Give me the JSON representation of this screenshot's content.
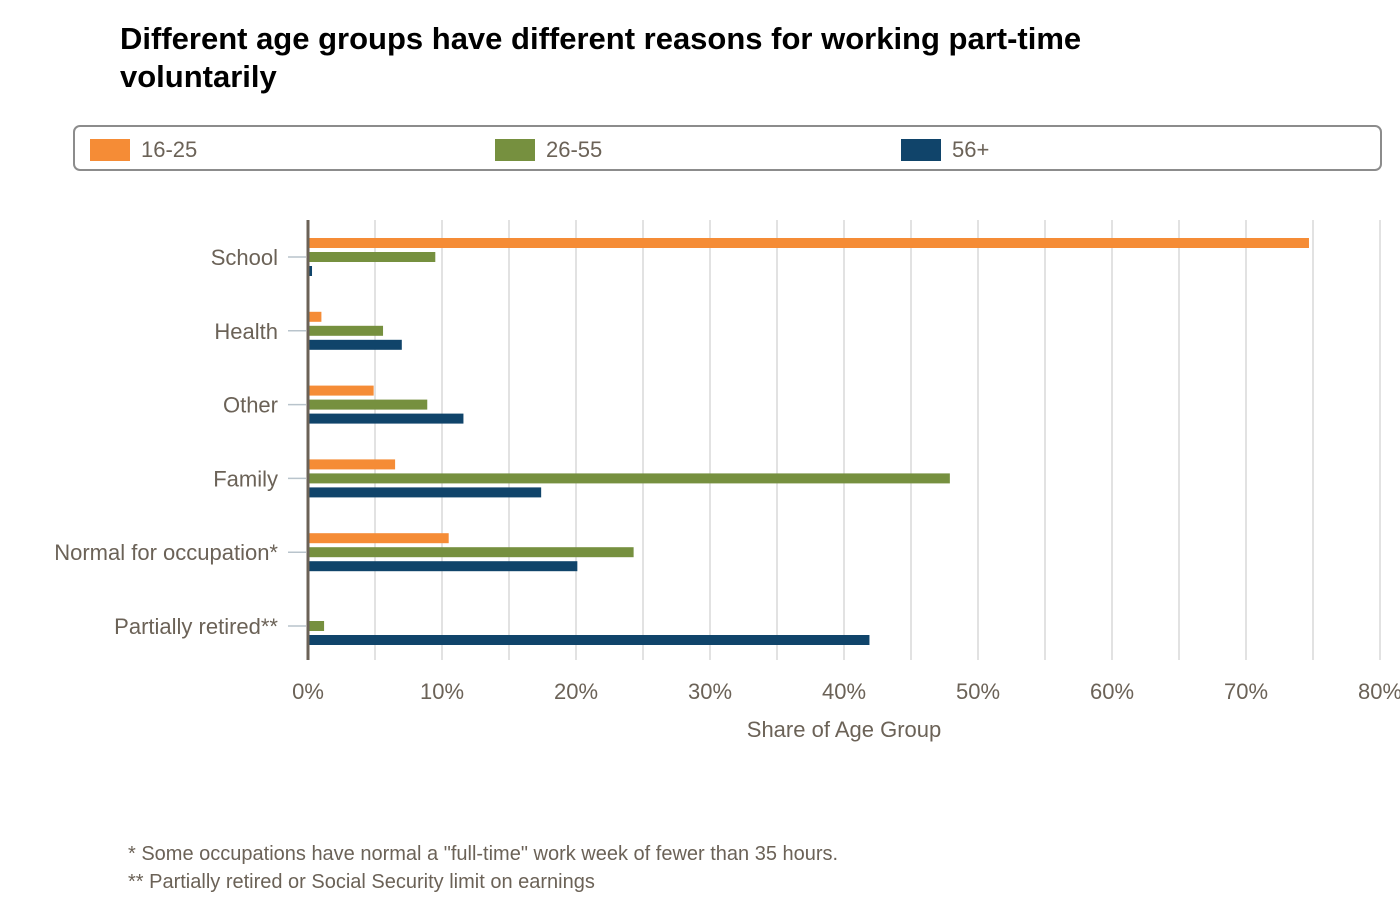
{
  "colors": {
    "text": "#6b6257",
    "grid": "#d9d9d9",
    "axis": "#6b6257",
    "tick": "#b9c4cc"
  },
  "chart_data": {
    "type": "bar",
    "orientation": "horizontal",
    "title": "Different age groups have different reasons for working part-time voluntarily",
    "xlabel": "Share of Age Group",
    "ylabel": "",
    "categories": [
      "School",
      "Health",
      "Other",
      "Family",
      "Normal for occupation*",
      "Partially retired**"
    ],
    "series": [
      {
        "name": "16-25",
        "color": "#f58c36",
        "values": [
          74.7,
          1.0,
          4.9,
          6.5,
          10.5,
          0
        ]
      },
      {
        "name": "26-55",
        "color": "#76903f",
        "values": [
          9.5,
          5.6,
          8.9,
          47.9,
          24.3,
          1.2
        ]
      },
      {
        "name": "56+",
        "color": "#10446a",
        "values": [
          0.3,
          7.0,
          11.6,
          17.4,
          20.1,
          41.9
        ]
      }
    ],
    "xlim": [
      0,
      80
    ],
    "xticks": [
      0,
      10,
      20,
      30,
      40,
      50,
      60,
      70,
      80
    ],
    "xtick_labels": [
      "0%",
      "10%",
      "20%",
      "30%",
      "40%",
      "50%",
      "60%",
      "70%",
      "80%"
    ],
    "grid": true,
    "legend_position": "top",
    "footnotes": [
      "* Some occupations have normal a \"full-time\" work week of fewer than 35 hours.",
      "** Partially retired or Social Security limit on earnings"
    ]
  }
}
